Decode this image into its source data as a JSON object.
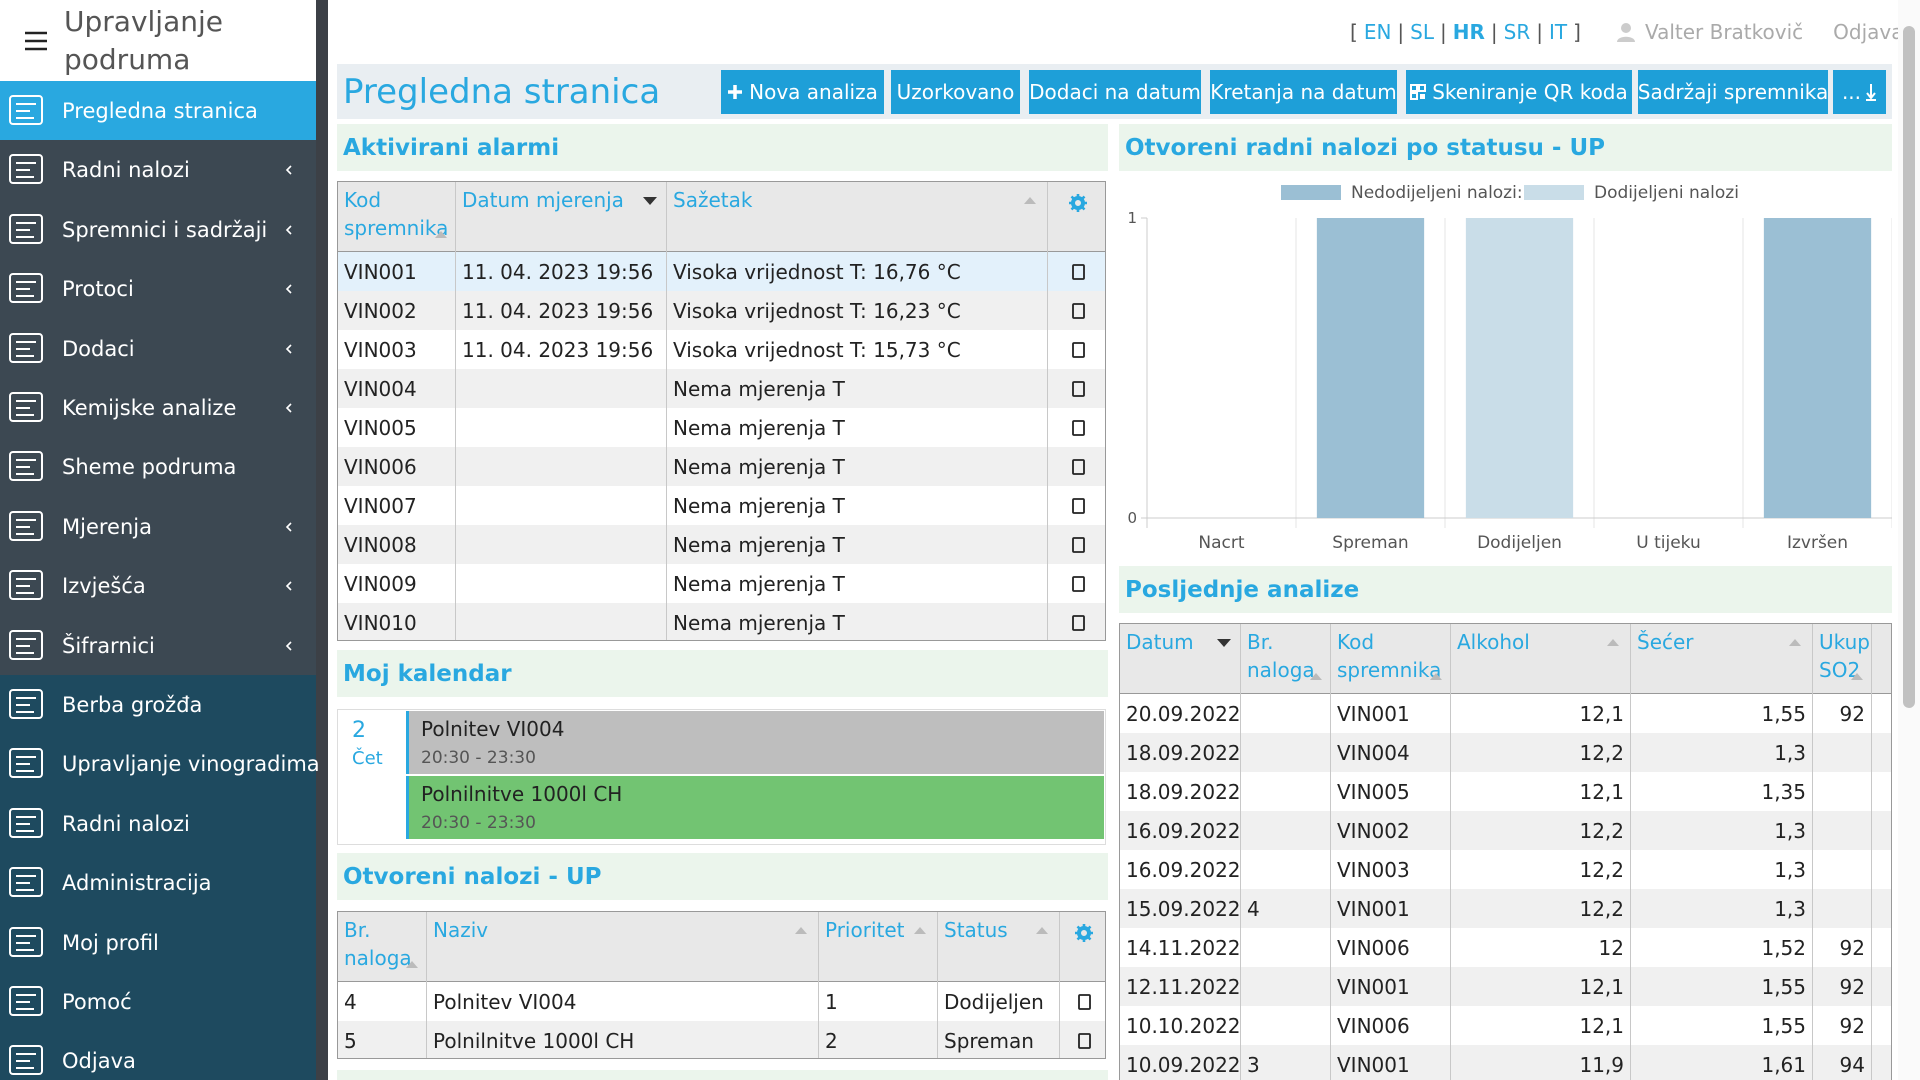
{
  "sidebar": {
    "title": "Upravljanje podruma",
    "main_menu": [
      {
        "label": "Pregledna stranica",
        "active": true,
        "submenu": false
      },
      {
        "label": "Radni nalozi",
        "active": false,
        "submenu": true
      },
      {
        "label": "Spremnici i sadržaji",
        "active": false,
        "submenu": true
      },
      {
        "label": "Protoci",
        "active": false,
        "submenu": true
      },
      {
        "label": "Dodaci",
        "active": false,
        "submenu": true
      },
      {
        "label": "Kemijske analize",
        "active": false,
        "submenu": true
      },
      {
        "label": "Sheme podruma",
        "active": false,
        "submenu": false
      },
      {
        "label": "Mjerenja",
        "active": false,
        "submenu": true
      },
      {
        "label": "Izvješća",
        "active": false,
        "submenu": true
      },
      {
        "label": "Šifrarnici",
        "active": false,
        "submenu": true
      }
    ],
    "app_menu": [
      "Berba grožđa",
      "Upravljanje vinogradima",
      "Radni nalozi",
      "Administracija",
      "Moj profil",
      "Pomoć",
      "Odjava"
    ]
  },
  "top_bar": {
    "lang_open": "[",
    "lang_separator": "|",
    "lang_close": "]",
    "languages": [
      "EN",
      "SL",
      "HR",
      "SR",
      "IT"
    ],
    "active_language": "HR",
    "user": "Valter Bratkovič",
    "logout": "Odjava"
  },
  "header": {
    "title": "Pregledna stranica",
    "buttons": [
      "Nova analiza",
      "Uzorkovano",
      "Dodaci na datum",
      "Kretanja na datum",
      "Skeniranje QR koda",
      "Sadržaji spremnika",
      "..."
    ]
  },
  "alarms": {
    "title": "Aktivirani alarmi",
    "columns": [
      "Kod spremnika",
      "Datum mjerenja",
      "Sažetak"
    ],
    "rows": [
      [
        "VIN001",
        "11. 04. 2023 19:56",
        "Visoka vrijednost T: 16,76 °C"
      ],
      [
        "VIN002",
        "11. 04. 2023 19:56",
        "Visoka vrijednost T: 16,23 °C"
      ],
      [
        "VIN003",
        "11. 04. 2023 19:56",
        "Visoka vrijednost T: 15,73 °C"
      ],
      [
        "VIN004",
        null,
        "Nema mjerenja T"
      ],
      [
        "VIN005",
        null,
        "Nema mjerenja T"
      ],
      [
        "VIN006",
        null,
        "Nema mjerenja T"
      ],
      [
        "VIN007",
        null,
        "Nema mjerenja T"
      ],
      [
        "VIN008",
        null,
        "Nema mjerenja T"
      ],
      [
        "VIN009",
        null,
        "Nema mjerenja T"
      ],
      [
        "VIN010",
        null,
        "Nema mjerenja T"
      ]
    ]
  },
  "calendar": {
    "title": "Moj kalendar",
    "day": 2,
    "weekday": "Čet",
    "events": [
      {
        "title": "Polnitev VI004",
        "time": "20:30 - 23:30",
        "color": "#bebebe"
      },
      {
        "title": "Polnilnitve 1000l CH",
        "time": "20:30 - 23:30",
        "color": "#72c472"
      }
    ]
  },
  "open_orders": {
    "title": "Otvoreni nalozi - UP",
    "columns": [
      "Br. naloga",
      "Naziv",
      "Prioritet",
      "Status"
    ],
    "rows": [
      [
        "4",
        "Polnitev VI004",
        "1",
        "Dodijeljen"
      ],
      [
        "5",
        "Polnilnitve 1000l CH",
        "2",
        "Spreman"
      ]
    ]
  },
  "status_chart": {
    "type": "bar",
    "stacked": true,
    "title": "Otvoreni radni nalozi po statusu - UP",
    "categories": [
      "Nacrt",
      "Spreman",
      "Dodijeljen",
      "U tijeku",
      "Izvršen"
    ],
    "series": [
      {
        "name": "Nedodijeljeni nalozi:",
        "color": "#9bbfd4",
        "values": [
          0,
          1,
          0,
          0,
          1
        ]
      },
      {
        "name": "Dodijeljeni nalozi",
        "color": "#c9dde8",
        "values": [
          0,
          0,
          1,
          0,
          0
        ]
      }
    ],
    "ylim": [
      0,
      1
    ],
    "yticks": [
      0,
      1
    ]
  },
  "analyses": {
    "title": "Posljednje analize",
    "columns": [
      "Datum",
      "Br. naloga",
      "Kod spremnika",
      "Alkohol",
      "Šećer",
      "Ukup SO2"
    ],
    "rows": [
      [
        "20.09.2022",
        null,
        "VIN001",
        "12,1",
        "1,55",
        "92"
      ],
      [
        "18.09.2022",
        null,
        "VIN004",
        "12,2",
        "1,3",
        null
      ],
      [
        "18.09.2022",
        null,
        "VIN005",
        "12,1",
        "1,35",
        null
      ],
      [
        "16.09.2022",
        null,
        "VIN002",
        "12,2",
        "1,3",
        null
      ],
      [
        "16.09.2022",
        null,
        "VIN003",
        "12,2",
        "1,3",
        null
      ],
      [
        "15.09.2022",
        "4",
        "VIN001",
        "12,2",
        "1,3",
        null
      ],
      [
        "14.11.2022",
        null,
        "VIN006",
        "12",
        "1,52",
        "92"
      ],
      [
        "12.11.2022",
        null,
        "VIN001",
        "12,1",
        "1,55",
        "92"
      ],
      [
        "10.10.2022",
        null,
        "VIN006",
        "12,1",
        "1,55",
        "92"
      ],
      [
        "10.09.2022",
        "3",
        "VIN001",
        "11,9",
        "1,61",
        "94"
      ]
    ]
  }
}
